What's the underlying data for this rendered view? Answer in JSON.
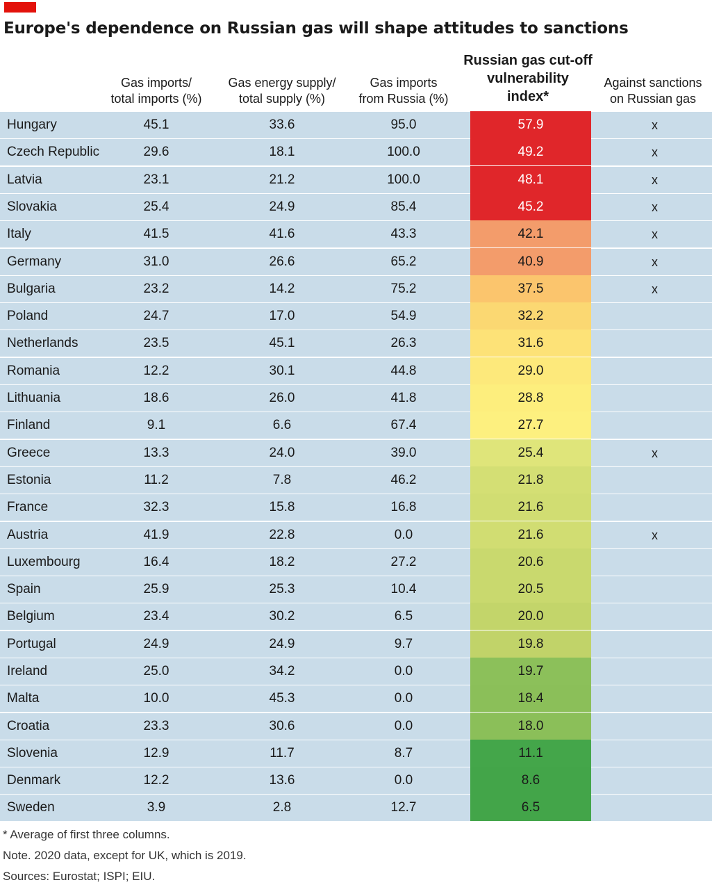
{
  "chart_data": {
    "type": "table",
    "title": "Europe's dependence on Russian gas will shape attitudes to sanctions",
    "columns": [
      "Gas imports/ total imports (%)",
      "Gas energy supply/ total supply (%)",
      "Gas imports from Russia (%)",
      "Russian gas cut-off vulnerability index*",
      "Against sanctions on Russian gas"
    ],
    "header": {
      "col1": [
        "Gas imports/",
        "total imports (%)"
      ],
      "col2": [
        "Gas energy supply/",
        "total supply (%)"
      ],
      "col3": [
        "Gas imports",
        "from Russia (%)"
      ],
      "col4": [
        "Russian gas cut-off",
        "vulnerability",
        "index*"
      ],
      "col5": [
        "Against sanctions",
        "on Russian gas"
      ]
    },
    "rows": [
      {
        "country": "Hungary",
        "gas_imports_share": "45.1",
        "gas_supply_share": "33.6",
        "russia_share": "95.0",
        "index": "57.9",
        "against": "x"
      },
      {
        "country": "Czech Republic",
        "gas_imports_share": "29.6",
        "gas_supply_share": "18.1",
        "russia_share": "100.0",
        "index": "49.2",
        "against": "x"
      },
      {
        "country": "Latvia",
        "gas_imports_share": "23.1",
        "gas_supply_share": "21.2",
        "russia_share": "100.0",
        "index": "48.1",
        "against": "x"
      },
      {
        "country": "Slovakia",
        "gas_imports_share": "25.4",
        "gas_supply_share": "24.9",
        "russia_share": "85.4",
        "index": "45.2",
        "against": "x"
      },
      {
        "country": "Italy",
        "gas_imports_share": "41.5",
        "gas_supply_share": "41.6",
        "russia_share": "43.3",
        "index": "42.1",
        "against": "x"
      },
      {
        "country": "Germany",
        "gas_imports_share": "31.0",
        "gas_supply_share": "26.6",
        "russia_share": "65.2",
        "index": "40.9",
        "against": "x"
      },
      {
        "country": "Bulgaria",
        "gas_imports_share": "23.2",
        "gas_supply_share": "14.2",
        "russia_share": "75.2",
        "index": "37.5",
        "against": "x"
      },
      {
        "country": "Poland",
        "gas_imports_share": "24.7",
        "gas_supply_share": "17.0",
        "russia_share": "54.9",
        "index": "32.2",
        "against": ""
      },
      {
        "country": "Netherlands",
        "gas_imports_share": "23.5",
        "gas_supply_share": "45.1",
        "russia_share": "26.3",
        "index": "31.6",
        "against": ""
      },
      {
        "country": "Romania",
        "gas_imports_share": "12.2",
        "gas_supply_share": "30.1",
        "russia_share": "44.8",
        "index": "29.0",
        "against": ""
      },
      {
        "country": "Lithuania",
        "gas_imports_share": "18.6",
        "gas_supply_share": "26.0",
        "russia_share": "41.8",
        "index": "28.8",
        "against": ""
      },
      {
        "country": "Finland",
        "gas_imports_share": "9.1",
        "gas_supply_share": "6.6",
        "russia_share": "67.4",
        "index": "27.7",
        "against": ""
      },
      {
        "country": "Greece",
        "gas_imports_share": "13.3",
        "gas_supply_share": "24.0",
        "russia_share": "39.0",
        "index": "25.4",
        "against": "x"
      },
      {
        "country": "Estonia",
        "gas_imports_share": "11.2",
        "gas_supply_share": "7.8",
        "russia_share": "46.2",
        "index": "21.8",
        "against": ""
      },
      {
        "country": "France",
        "gas_imports_share": "32.3",
        "gas_supply_share": "15.8",
        "russia_share": "16.8",
        "index": "21.6",
        "against": ""
      },
      {
        "country": "Austria",
        "gas_imports_share": "41.9",
        "gas_supply_share": "22.8",
        "russia_share": "0.0",
        "index": "21.6",
        "against": "x"
      },
      {
        "country": "Luxembourg",
        "gas_imports_share": "16.4",
        "gas_supply_share": "18.2",
        "russia_share": "27.2",
        "index": "20.6",
        "against": ""
      },
      {
        "country": "Spain",
        "gas_imports_share": "25.9",
        "gas_supply_share": "25.3",
        "russia_share": "10.4",
        "index": "20.5",
        "against": ""
      },
      {
        "country": "Belgium",
        "gas_imports_share": "23.4",
        "gas_supply_share": "30.2",
        "russia_share": "6.5",
        "index": "20.0",
        "against": ""
      },
      {
        "country": "Portugal",
        "gas_imports_share": "24.9",
        "gas_supply_share": "24.9",
        "russia_share": "9.7",
        "index": "19.8",
        "against": ""
      },
      {
        "country": "Ireland",
        "gas_imports_share": "25.0",
        "gas_supply_share": "34.2",
        "russia_share": "0.0",
        "index": "19.7",
        "against": ""
      },
      {
        "country": "Malta",
        "gas_imports_share": "10.0",
        "gas_supply_share": "45.3",
        "russia_share": "0.0",
        "index": "18.4",
        "against": ""
      },
      {
        "country": "Croatia",
        "gas_imports_share": "23.3",
        "gas_supply_share": "30.6",
        "russia_share": "0.0",
        "index": "18.0",
        "against": ""
      },
      {
        "country": "Slovenia",
        "gas_imports_share": "12.9",
        "gas_supply_share": "11.7",
        "russia_share": "8.7",
        "index": "11.1",
        "against": ""
      },
      {
        "country": "Denmark",
        "gas_imports_share": "12.2",
        "gas_supply_share": "13.6",
        "russia_share": "0.0",
        "index": "8.6",
        "against": ""
      },
      {
        "country": "Sweden",
        "gas_imports_share": "3.9",
        "gas_supply_share": "2.8",
        "russia_share": "12.7",
        "index": "6.5",
        "against": ""
      }
    ],
    "index_colors": [
      "#e0262a",
      "#e0262a",
      "#e0262a",
      "#e0262a",
      "#f39c6b",
      "#f39c6b",
      "#fbc56d",
      "#fbd872",
      "#fde277",
      "#fde97b",
      "#fdee7d",
      "#fdf07f",
      "#dfe57a",
      "#d4df74",
      "#d1dd72",
      "#d1dd72",
      "#c9d96e",
      "#c9d96e",
      "#c3d56a",
      "#c1d369",
      "#8cc05a",
      "#8bbf59",
      "#8bbf59",
      "#44a64a",
      "#43a549",
      "#43a549"
    ],
    "footnotes": [
      "* Average of first three columns.",
      "Note. 2020 data, except for UK, which is 2019.",
      "Sources: Eurostat; ISPI; EIU."
    ]
  },
  "colors": {
    "brand": "#e3120b",
    "row_background": "#c9dce9",
    "index_text_dark_bg": "#ffffff"
  }
}
